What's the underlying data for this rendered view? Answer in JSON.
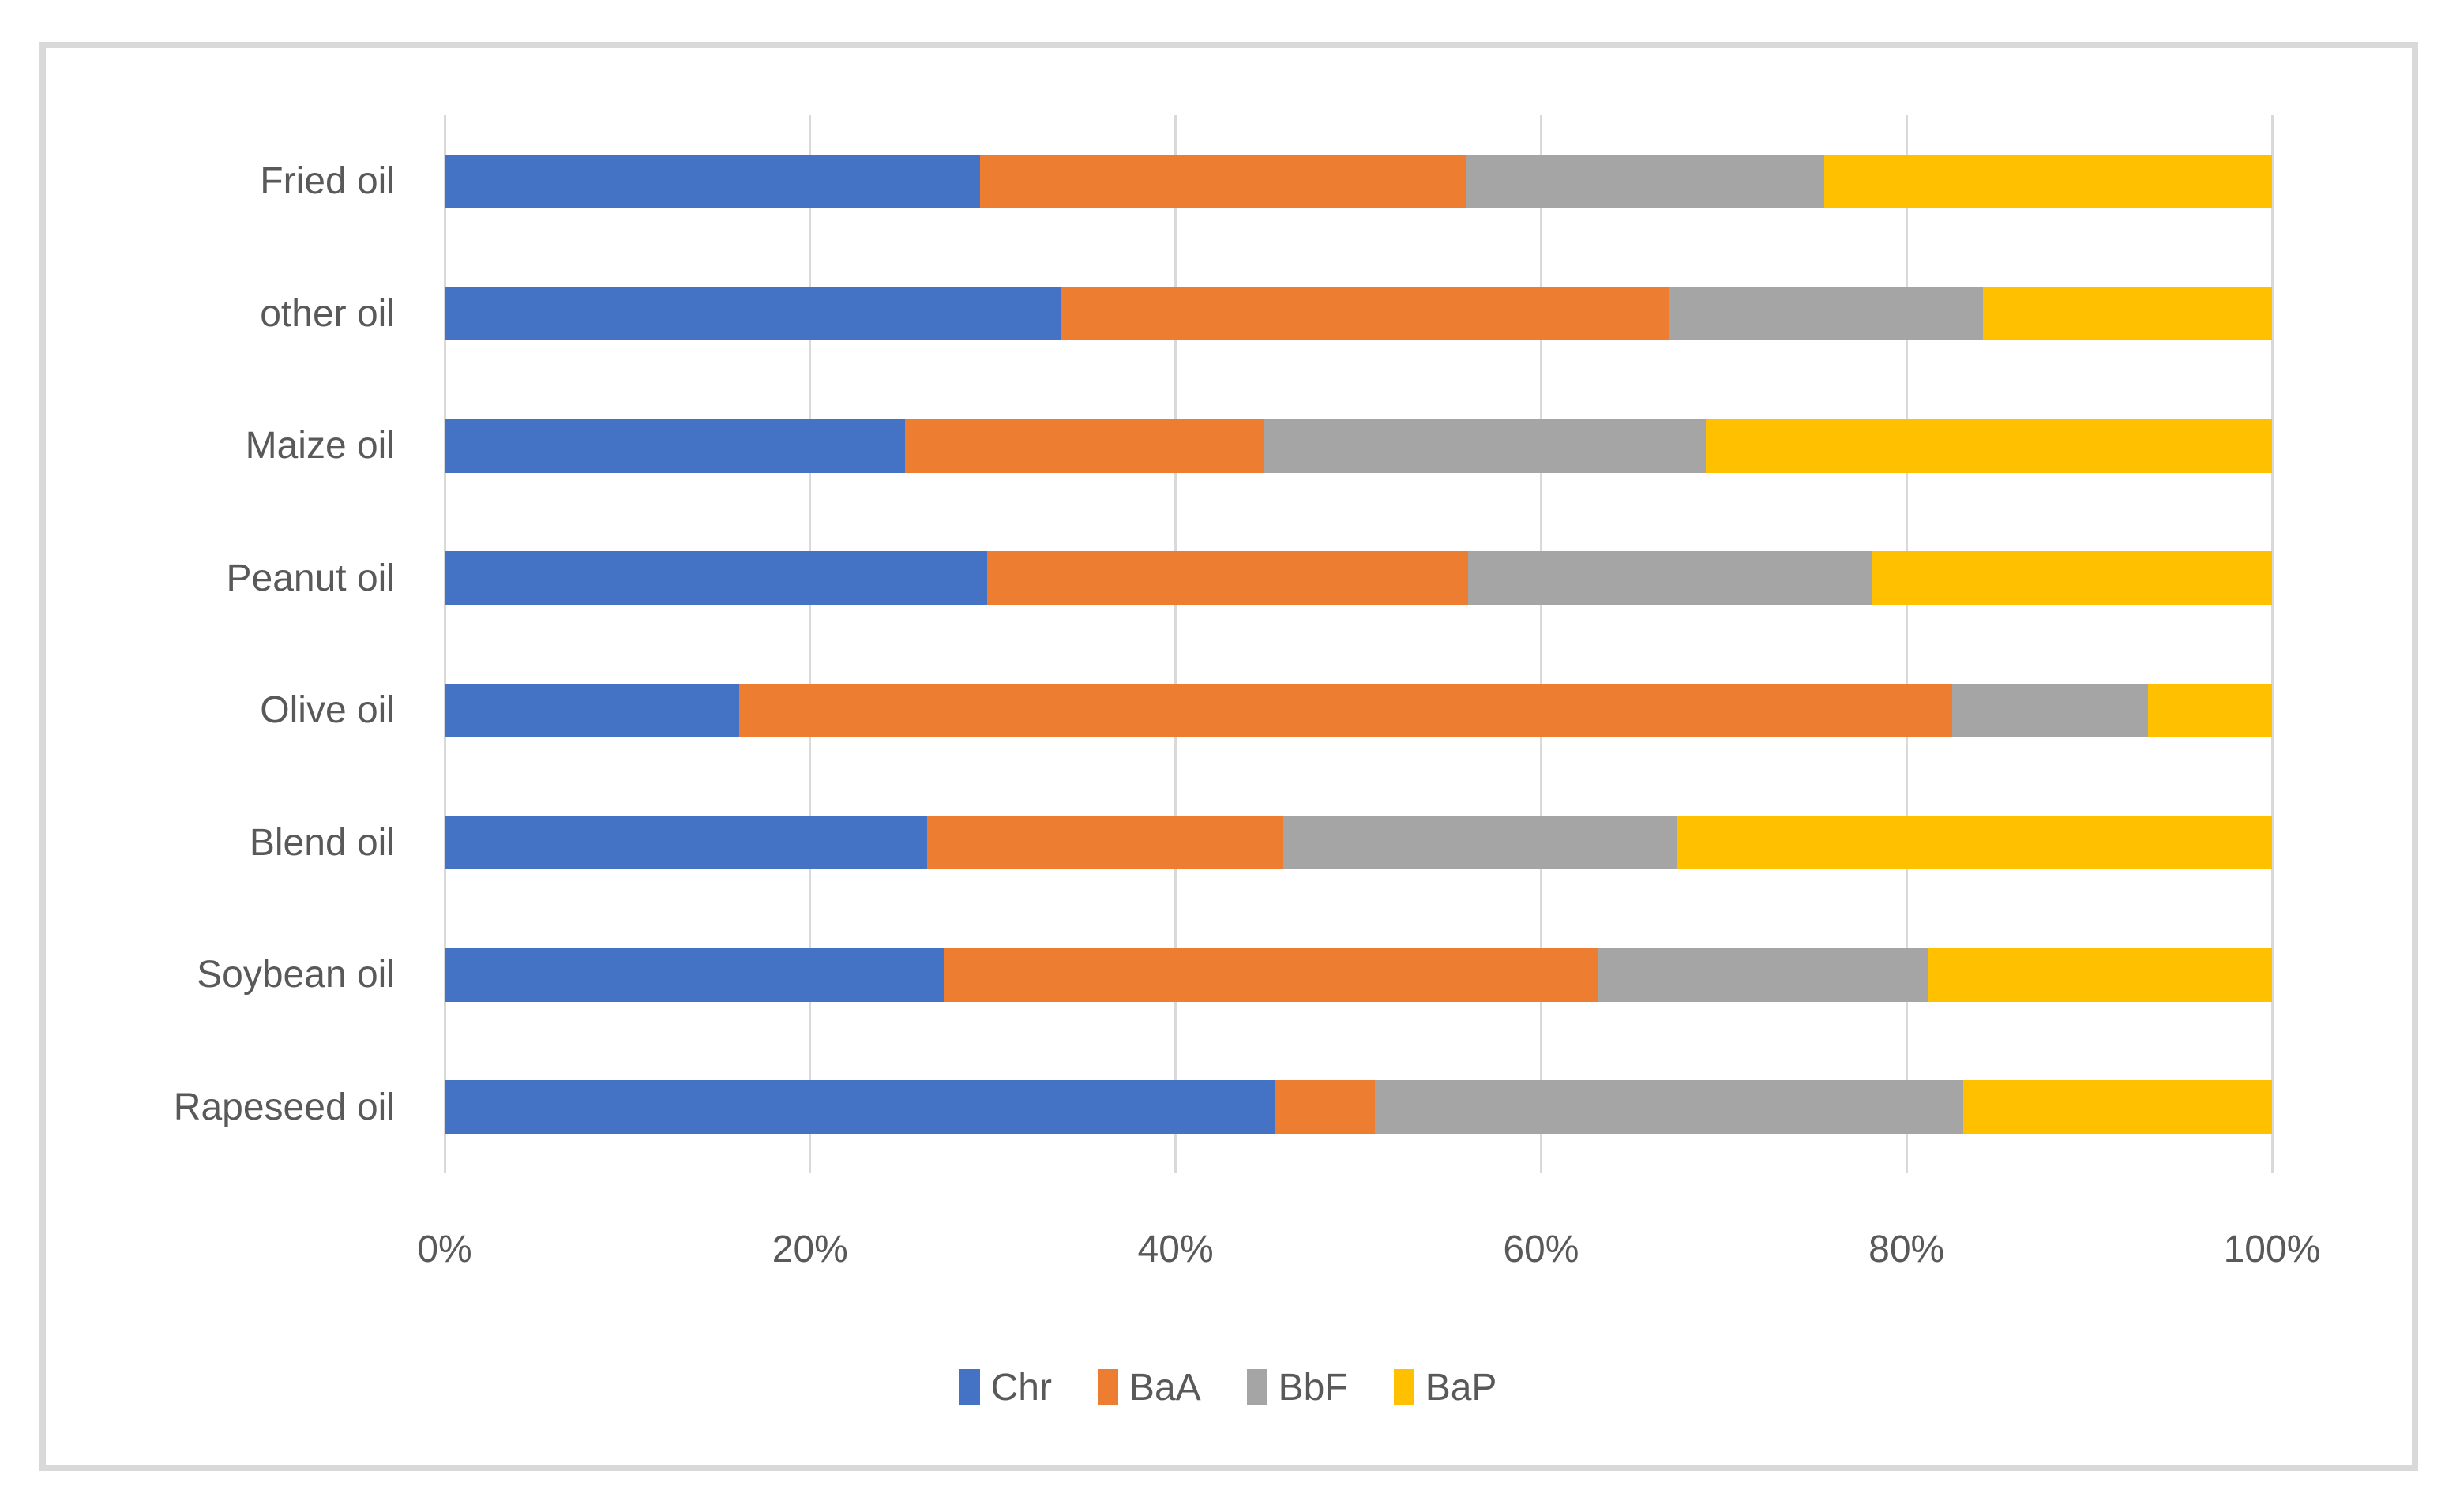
{
  "chart_data": {
    "type": "bar",
    "orientation": "horizontal",
    "stacked": "percent",
    "title": "",
    "xlabel": "",
    "ylabel": "",
    "categories": [
      "Fried oil",
      "other oil",
      "Maize oil",
      "Peanut oil",
      "Olive oil",
      "Blend oil",
      "Soybean oil",
      "Rapeseed oil"
    ],
    "series": [
      {
        "name": "Chr",
        "color": "#4472C4",
        "values": [
          29.3,
          33.7,
          25.2,
          29.7,
          16.1,
          26.4,
          27.3,
          45.4
        ]
      },
      {
        "name": "BaA",
        "color": "#ED7D31",
        "values": [
          26.6,
          33.3,
          19.6,
          26.3,
          66.4,
          19.5,
          35.8,
          5.5
        ]
      },
      {
        "name": "BbF",
        "color": "#A5A5A5",
        "values": [
          19.6,
          17.2,
          24.2,
          22.1,
          10.7,
          21.5,
          18.1,
          32.2
        ]
      },
      {
        "name": "BaP",
        "color": "#FFC000",
        "values": [
          24.5,
          15.8,
          31.0,
          21.9,
          6.8,
          32.6,
          18.8,
          16.9
        ]
      }
    ],
    "x_axis": {
      "ticks": [
        "0%",
        "20%",
        "40%",
        "60%",
        "80%",
        "100%"
      ],
      "range": [
        0,
        100
      ]
    },
    "legend": {
      "position": "bottom",
      "labels": [
        "Chr",
        "BaA",
        "BbF",
        "BaP"
      ]
    },
    "grid": true,
    "colors": {
      "gridline": "#D9D9D9",
      "frame_border": "#D9D9D9",
      "text": "#595959",
      "background": "#FFFFFF"
    }
  }
}
